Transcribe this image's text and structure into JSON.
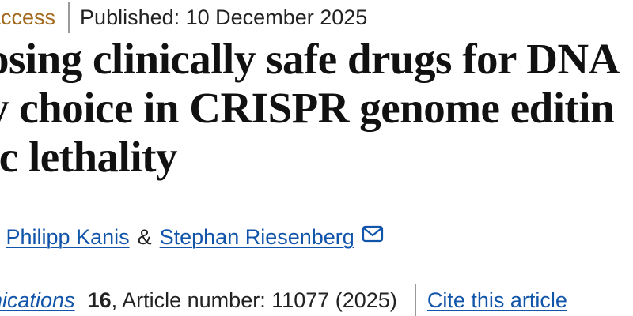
{
  "meta": {
    "access_label": "access",
    "published_label": "Published: 10 December 2025"
  },
  "title": {
    "lines": [
      "osing clinically safe drugs for DNA",
      "y choice in CRISPR genome editin",
      "ic lethality"
    ]
  },
  "authors": {
    "lead_fragment": ",",
    "author_1": "Philipp Kanis",
    "ampersand": "&",
    "author_2": "Stephan Riesenberg",
    "mail_icon": "mail-icon"
  },
  "citation": {
    "journal": "nications",
    "volume": "16",
    "article_number": ", Article number: 11077 (2025)",
    "cite_label": "Cite this article"
  },
  "colors": {
    "access_link": "#a36a1e",
    "link": "#1155aa",
    "text": "#222222",
    "separator": "#9a9a9a"
  }
}
